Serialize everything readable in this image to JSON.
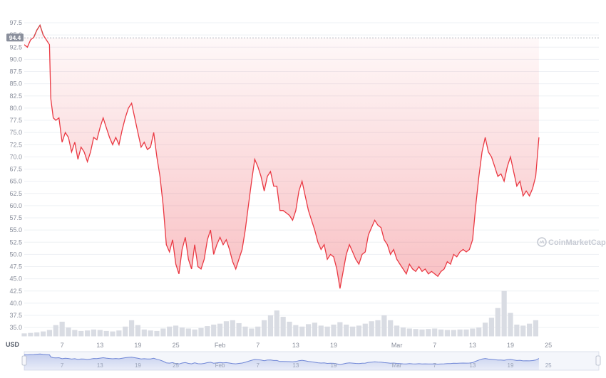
{
  "chart_data": {
    "type": "line",
    "title": "",
    "xlabel": "",
    "ylabel": "USD",
    "y_axis_unit_label": "USD",
    "ylim": [
      32.5,
      98.5
    ],
    "grid": true,
    "reference_price": 94.4,
    "current_price_label": "94.4",
    "watermark": "CoinMarketCap",
    "colors": {
      "up": "#16c784",
      "down": "#ea3943",
      "volume": "#d9dce3",
      "navigator": "#6f86d6",
      "grid": "#eef0f4",
      "badge": "#8a8f9c"
    },
    "y_ticks": [
      "97.5",
      "95.0",
      "92.5",
      "90.0",
      "87.5",
      "85.0",
      "82.5",
      "80.0",
      "77.5",
      "75.0",
      "72.5",
      "70.0",
      "67.5",
      "65.0",
      "62.5",
      "60.0",
      "57.5",
      "55.0",
      "52.5",
      "50.0",
      "47.5",
      "45.0",
      "42.5",
      "40.0",
      "37.5",
      "35.0"
    ],
    "x_ticks": [
      {
        "label": "7",
        "day": 6
      },
      {
        "label": "13",
        "day": 12
      },
      {
        "label": "19",
        "day": 18
      },
      {
        "label": "25",
        "day": 24
      },
      {
        "label": "Feb",
        "day": 31
      },
      {
        "label": "7",
        "day": 37
      },
      {
        "label": "13",
        "day": 43
      },
      {
        "label": "19",
        "day": 49
      },
      {
        "label": "Mar",
        "day": 59
      },
      {
        "label": "7",
        "day": 65
      },
      {
        "label": "13",
        "day": 71
      },
      {
        "label": "19",
        "day": 77
      },
      {
        "label": "25",
        "day": 83
      }
    ],
    "x_range_days": [
      0,
      91
    ],
    "series": [
      {
        "values": [
          [
            0,
            93
          ],
          [
            0.5,
            92.5
          ],
          [
            1,
            94
          ],
          [
            1.5,
            94.5
          ],
          [
            2,
            96
          ],
          [
            2.5,
            97
          ],
          [
            3,
            95
          ],
          [
            3.5,
            94
          ],
          [
            4,
            93
          ],
          [
            4.2,
            82
          ],
          [
            4.6,
            78
          ],
          [
            5,
            77.5
          ],
          [
            5.5,
            78
          ],
          [
            6,
            73
          ],
          [
            6.5,
            75
          ],
          [
            7,
            74
          ],
          [
            7.5,
            71
          ],
          [
            8,
            73
          ],
          [
            8.5,
            69.5
          ],
          [
            9,
            72
          ],
          [
            9.5,
            71
          ],
          [
            10,
            69
          ],
          [
            10.5,
            71
          ],
          [
            11,
            74
          ],
          [
            11.5,
            73.5
          ],
          [
            12,
            76
          ],
          [
            12.5,
            78
          ],
          [
            13,
            76
          ],
          [
            13.5,
            74
          ],
          [
            14,
            72.5
          ],
          [
            14.5,
            74
          ],
          [
            15,
            72.5
          ],
          [
            15.5,
            75.5
          ],
          [
            16,
            78
          ],
          [
            16.5,
            80
          ],
          [
            17,
            81
          ],
          [
            17.5,
            78
          ],
          [
            18,
            75
          ],
          [
            18.5,
            72
          ],
          [
            19,
            73
          ],
          [
            19.5,
            71.5
          ],
          [
            20,
            72
          ],
          [
            20.5,
            75
          ],
          [
            21,
            70
          ],
          [
            21.5,
            66
          ],
          [
            22,
            60
          ],
          [
            22.5,
            52
          ],
          [
            23,
            50.5
          ],
          [
            23.5,
            53
          ],
          [
            24,
            48
          ],
          [
            24.5,
            46
          ],
          [
            25,
            51
          ],
          [
            25.5,
            53.5
          ],
          [
            26,
            49
          ],
          [
            26.5,
            47
          ],
          [
            27,
            52
          ],
          [
            27.5,
            47.5
          ],
          [
            28,
            47
          ],
          [
            28.5,
            49
          ],
          [
            29,
            53
          ],
          [
            29.5,
            55
          ],
          [
            30,
            50
          ],
          [
            30.5,
            52
          ],
          [
            31,
            53.5
          ],
          [
            31.5,
            52
          ],
          [
            32,
            53
          ],
          [
            32.5,
            51
          ],
          [
            33,
            48.5
          ],
          [
            33.5,
            47
          ],
          [
            34,
            49
          ],
          [
            34.5,
            51
          ],
          [
            35,
            55
          ],
          [
            35.5,
            60
          ],
          [
            36,
            65
          ],
          [
            36.5,
            69.5
          ],
          [
            37,
            68
          ],
          [
            37.5,
            66
          ],
          [
            38,
            63
          ],
          [
            38.5,
            66
          ],
          [
            39,
            67
          ],
          [
            39.5,
            64
          ],
          [
            40,
            64
          ],
          [
            40.5,
            59
          ],
          [
            41,
            59
          ],
          [
            41.5,
            58.5
          ],
          [
            42,
            58
          ],
          [
            42.5,
            57
          ],
          [
            43,
            59
          ],
          [
            43.5,
            63
          ],
          [
            44,
            65
          ],
          [
            44.5,
            62
          ],
          [
            45,
            59
          ],
          [
            45.5,
            57
          ],
          [
            46,
            55
          ],
          [
            46.5,
            52.5
          ],
          [
            47,
            51
          ],
          [
            47.5,
            52
          ],
          [
            48,
            49
          ],
          [
            48.5,
            50
          ],
          [
            49,
            49.5
          ],
          [
            49.5,
            47
          ],
          [
            50,
            43
          ],
          [
            50.5,
            46.5
          ],
          [
            51,
            50
          ],
          [
            51.5,
            52
          ],
          [
            52,
            50.5
          ],
          [
            52.5,
            49
          ],
          [
            53,
            48
          ],
          [
            53.5,
            50
          ],
          [
            54,
            50.5
          ],
          [
            54.5,
            54
          ],
          [
            55,
            55.5
          ],
          [
            55.5,
            57
          ],
          [
            56,
            56
          ],
          [
            56.5,
            55.5
          ],
          [
            57,
            53
          ],
          [
            57.5,
            52
          ],
          [
            58,
            50
          ],
          [
            58.5,
            51
          ],
          [
            59,
            49
          ],
          [
            59.5,
            48
          ],
          [
            60,
            47
          ],
          [
            60.5,
            46
          ],
          [
            61,
            48
          ],
          [
            61.5,
            47
          ],
          [
            62,
            46.5
          ],
          [
            62.5,
            47.5
          ],
          [
            63,
            46.5
          ],
          [
            63.5,
            47
          ],
          [
            64,
            46
          ],
          [
            64.5,
            46.5
          ],
          [
            65,
            46
          ],
          [
            65.5,
            45.5
          ],
          [
            66,
            46.5
          ],
          [
            66.5,
            47
          ],
          [
            67,
            48.5
          ],
          [
            67.5,
            48
          ],
          [
            68,
            50
          ],
          [
            68.5,
            49.5
          ],
          [
            69,
            50.5
          ],
          [
            69.5,
            51
          ],
          [
            70,
            50.5
          ],
          [
            70.5,
            51
          ],
          [
            71,
            53
          ],
          [
            71.5,
            60
          ],
          [
            72,
            66
          ],
          [
            72.5,
            71
          ],
          [
            73,
            74
          ],
          [
            73.5,
            71
          ],
          [
            74,
            70
          ],
          [
            74.5,
            68
          ],
          [
            75,
            66
          ],
          [
            75.5,
            66.5
          ],
          [
            76,
            65
          ],
          [
            76.5,
            68
          ],
          [
            77,
            70
          ],
          [
            77.5,
            67
          ],
          [
            78,
            64
          ],
          [
            78.5,
            65
          ],
          [
            79,
            62
          ],
          [
            79.5,
            63
          ],
          [
            80,
            62
          ],
          [
            80.5,
            63.5
          ],
          [
            81,
            66
          ],
          [
            81.5,
            74
          ]
        ]
      }
    ],
    "volume": [
      [
        0,
        33.8
      ],
      [
        1,
        33.9
      ],
      [
        2,
        34
      ],
      [
        3,
        34.2
      ],
      [
        4,
        34.5
      ],
      [
        5,
        35.5
      ],
      [
        6,
        36.2
      ],
      [
        7,
        35
      ],
      [
        8,
        34.5
      ],
      [
        9,
        34.3
      ],
      [
        10,
        34.4
      ],
      [
        11,
        34.6
      ],
      [
        12,
        34.5
      ],
      [
        13,
        34.3
      ],
      [
        14,
        34.2
      ],
      [
        15,
        34.4
      ],
      [
        16,
        35.2
      ],
      [
        17,
        36.5
      ],
      [
        18,
        35.5
      ],
      [
        19,
        34.6
      ],
      [
        20,
        34.4
      ],
      [
        21,
        34.3
      ],
      [
        22,
        34.8
      ],
      [
        23,
        35.2
      ],
      [
        24,
        35.4
      ],
      [
        25,
        35
      ],
      [
        26,
        34.8
      ],
      [
        27,
        34.6
      ],
      [
        28,
        34.9
      ],
      [
        29,
        35.3
      ],
      [
        30,
        35.6
      ],
      [
        31,
        35.8
      ],
      [
        32,
        36.3
      ],
      [
        33,
        36.5
      ],
      [
        34,
        35.9
      ],
      [
        35,
        35.2
      ],
      [
        36,
        34.8
      ],
      [
        37,
        35.2
      ],
      [
        38,
        36.5
      ],
      [
        39,
        37.5
      ],
      [
        40,
        38.5
      ],
      [
        41,
        37.2
      ],
      [
        42,
        36.2
      ],
      [
        43,
        35.5
      ],
      [
        44,
        35.2
      ],
      [
        45,
        35.7
      ],
      [
        46,
        36
      ],
      [
        47,
        35.4
      ],
      [
        48,
        35.2
      ],
      [
        49,
        35.6
      ],
      [
        50,
        36.1
      ],
      [
        51,
        35.6
      ],
      [
        52,
        35.2
      ],
      [
        53,
        35.4
      ],
      [
        54,
        35.8
      ],
      [
        55,
        36.3
      ],
      [
        56,
        36.5
      ],
      [
        57,
        37.5
      ],
      [
        58,
        36.5
      ],
      [
        59,
        35.4
      ],
      [
        60,
        35
      ],
      [
        61,
        34.8
      ],
      [
        62,
        34.7
      ],
      [
        63,
        34.6
      ],
      [
        64,
        34.7
      ],
      [
        65,
        34.8
      ],
      [
        66,
        34.6
      ],
      [
        67,
        34.5
      ],
      [
        68,
        34.5
      ],
      [
        69,
        34.6
      ],
      [
        70,
        34.6
      ],
      [
        71,
        34.8
      ],
      [
        72,
        35
      ],
      [
        73,
        36
      ],
      [
        74,
        37
      ],
      [
        75,
        39
      ],
      [
        76,
        42.5
      ],
      [
        77,
        38
      ],
      [
        78,
        35.6
      ],
      [
        79,
        35.4
      ],
      [
        80,
        35.8
      ],
      [
        81,
        36.5
      ]
    ]
  }
}
